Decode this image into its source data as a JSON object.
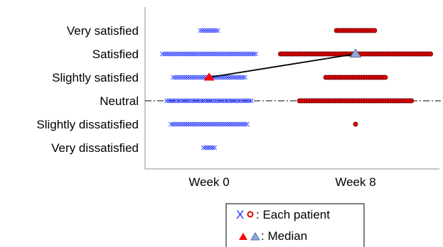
{
  "chart_data": {
    "type": "scatter",
    "title": "",
    "xlabel": "",
    "ylabel": "",
    "categories": [
      "Week 0",
      "Week 8"
    ],
    "y_categories": [
      "Very dissatisfied",
      "Slightly dissatisfied",
      "Neutral",
      "Slightly satisfied",
      "Satisfied",
      "Very satisfied"
    ],
    "grid": false,
    "reference_line": {
      "y": "Neutral",
      "style": "dash-dot"
    },
    "series": [
      {
        "marker": "x",
        "color": "#3344ff",
        "x": "Week 0",
        "points": [
          {
            "y": "Very satisfied",
            "count": 9
          },
          {
            "y": "Satisfied",
            "count": 44
          },
          {
            "y": "Slightly satisfied",
            "count": 34
          },
          {
            "y": "Neutral",
            "count": 40
          },
          {
            "y": "Slightly dissatisfied",
            "count": 36
          },
          {
            "y": "Very dissatisfied",
            "count": 6
          }
        ]
      },
      {
        "marker": "circle",
        "color": "#dd0000",
        "x": "Week 8",
        "points": [
          {
            "y": "Very satisfied",
            "count": 17
          },
          {
            "y": "Satisfied",
            "count": 64
          },
          {
            "y": "Slightly satisfied",
            "count": 26
          },
          {
            "y": "Neutral",
            "count": 48
          },
          {
            "y": "Slightly dissatisfied",
            "count": 1
          }
        ]
      }
    ],
    "median": [
      {
        "x": "Week 0",
        "y": "Slightly satisfied",
        "marker": "triangle",
        "color": "#ff0000"
      },
      {
        "x": "Week 8",
        "y": "Satisfied",
        "marker": "triangle",
        "color": "#8fa8d8"
      }
    ],
    "legend": {
      "placement": "bottom-center",
      "entries": [
        ": Each patient",
        ": Median"
      ],
      "glyphs": [
        "X",
        "o"
      ]
    }
  }
}
